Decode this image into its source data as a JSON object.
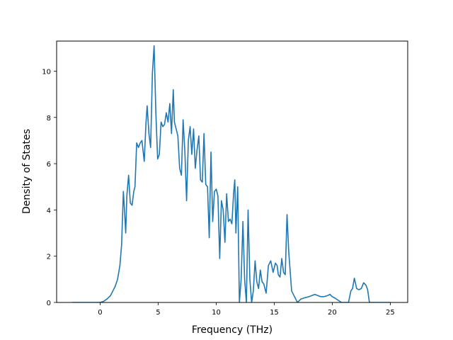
{
  "chart_data": {
    "type": "line",
    "xlabel": "Frequency (THz)",
    "ylabel": "Density of States",
    "xlim": [
      -3.75,
      26.5
    ],
    "ylim": [
      0,
      11.3
    ],
    "xticks": [
      0,
      5,
      10,
      15,
      20,
      25
    ],
    "yticks": [
      0,
      2,
      4,
      6,
      8,
      10
    ],
    "grid": false,
    "line_color": "#1f77b4",
    "series": [
      {
        "x": [
          -2.4,
          -1.5,
          -0.5,
          0.0,
          0.3,
          0.6,
          0.9,
          1.1,
          1.3,
          1.5,
          1.7,
          1.85,
          2.0,
          2.1,
          2.2,
          2.3,
          2.45,
          2.6,
          2.75,
          2.9,
          3.0,
          3.15,
          3.3,
          3.45,
          3.6,
          3.8,
          3.95,
          4.05,
          4.2,
          4.35,
          4.5,
          4.65,
          4.8,
          4.95,
          5.1,
          5.25,
          5.4,
          5.55,
          5.7,
          5.85,
          6.0,
          6.15,
          6.3,
          6.4,
          6.55,
          6.7,
          6.85,
          7.0,
          7.15,
          7.3,
          7.45,
          7.6,
          7.75,
          7.9,
          8.05,
          8.2,
          8.35,
          8.5,
          8.65,
          8.8,
          8.95,
          9.1,
          9.25,
          9.4,
          9.55,
          9.7,
          9.85,
          10.0,
          10.15,
          10.3,
          10.45,
          10.6,
          10.75,
          10.9,
          11.05,
          11.2,
          11.35,
          11.5,
          11.6,
          11.7,
          11.85,
          12.0,
          12.15,
          12.3,
          12.45,
          12.6,
          12.75,
          12.9,
          13.05,
          13.2,
          13.35,
          13.5,
          13.65,
          13.8,
          13.95,
          14.1,
          14.3,
          14.5,
          14.7,
          14.9,
          15.1,
          15.25,
          15.35,
          15.5,
          15.65,
          15.8,
          15.95,
          16.1,
          16.25,
          16.5,
          17.0,
          17.3,
          17.6,
          18.0,
          18.5,
          19.0,
          19.3,
          19.6,
          19.8,
          20.0,
          20.2,
          20.8,
          21.2,
          21.4,
          21.6,
          21.75,
          21.9,
          22.1,
          22.3,
          22.5,
          22.7,
          22.9,
          23.05,
          23.2,
          25.0
        ],
        "y": [
          0.0,
          0.0,
          0.0,
          0.0,
          0.05,
          0.15,
          0.3,
          0.5,
          0.7,
          1.0,
          1.6,
          2.5,
          4.8,
          4.0,
          3.0,
          4.6,
          5.5,
          4.3,
          4.2,
          4.8,
          5.0,
          6.9,
          6.7,
          6.9,
          7.0,
          6.1,
          7.8,
          8.5,
          7.3,
          6.7,
          9.9,
          11.1,
          8.2,
          6.2,
          6.4,
          7.8,
          7.6,
          7.7,
          8.2,
          7.8,
          8.6,
          7.3,
          9.2,
          7.8,
          7.5,
          7.2,
          5.8,
          5.5,
          7.9,
          6.5,
          4.4,
          7.0,
          7.6,
          6.4,
          7.5,
          5.8,
          6.6,
          7.2,
          5.3,
          5.2,
          7.3,
          5.1,
          5.0,
          2.8,
          6.5,
          3.5,
          4.8,
          4.9,
          4.6,
          1.9,
          4.4,
          4.0,
          2.6,
          4.7,
          3.5,
          3.6,
          3.4,
          4.7,
          5.3,
          3.0,
          5.0,
          0.0,
          1.0,
          3.5,
          1.0,
          0.0,
          4.0,
          1.0,
          0.0,
          0.5,
          1.8,
          0.9,
          0.6,
          1.4,
          0.9,
          0.8,
          0.4,
          1.6,
          1.8,
          1.3,
          1.7,
          1.6,
          1.2,
          1.1,
          1.9,
          1.3,
          1.2,
          3.8,
          2.2,
          0.5,
          0.0,
          0.15,
          0.2,
          0.25,
          0.35,
          0.25,
          0.25,
          0.3,
          0.35,
          0.25,
          0.2,
          0.0,
          0.0,
          0.0,
          0.5,
          0.6,
          1.05,
          0.6,
          0.55,
          0.6,
          0.85,
          0.75,
          0.55,
          0.0,
          0.0
        ]
      }
    ]
  }
}
